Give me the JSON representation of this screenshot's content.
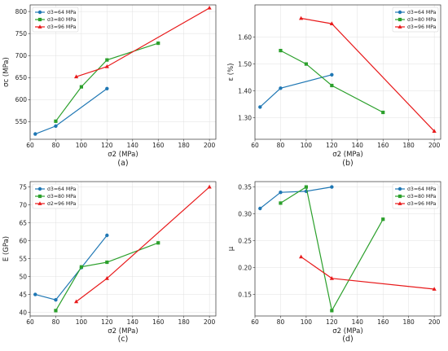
{
  "chart_data": [
    {
      "type": "line",
      "caption": "(a)",
      "xlabel": "σ2 (MPa)",
      "ylabel": "σc (MPa)",
      "xlim": [
        60,
        205
      ],
      "ylim": [
        510,
        815
      ],
      "xticks": [
        60,
        80,
        100,
        120,
        140,
        160,
        180,
        200
      ],
      "yticks": [
        550,
        600,
        650,
        700,
        750,
        800
      ],
      "legend": "top-left",
      "series": [
        {
          "name": "σ3=64 MPa",
          "color": "#1f77b4",
          "marker": "circle",
          "x": [
            64,
            80,
            120
          ],
          "y": [
            522,
            540,
            625
          ]
        },
        {
          "name": "σ3=80 MPa",
          "color": "#2ca02c",
          "marker": "square",
          "x": [
            80,
            100,
            120,
            160
          ],
          "y": [
            551,
            629,
            690,
            728
          ]
        },
        {
          "name": "σ3=96 MPa",
          "color": "#e8191a",
          "marker": "triangle",
          "x": [
            96,
            120,
            200
          ],
          "y": [
            652,
            675,
            808
          ]
        }
      ]
    },
    {
      "type": "line",
      "caption": "(b)",
      "xlabel": "σ2 (MPa)",
      "ylabel": "ε (%)",
      "xlim": [
        60,
        205
      ],
      "ylim": [
        1.22,
        1.72
      ],
      "xticks": [
        60,
        80,
        100,
        120,
        140,
        160,
        180,
        200
      ],
      "yticks": [
        1.3,
        1.4,
        1.5,
        1.6
      ],
      "legend": "top-right",
      "series": [
        {
          "name": "σ3=64 MPa",
          "color": "#1f77b4",
          "marker": "circle",
          "x": [
            64,
            80,
            120
          ],
          "y": [
            1.34,
            1.41,
            1.46
          ]
        },
        {
          "name": "σ3=80 MPa",
          "color": "#2ca02c",
          "marker": "square",
          "x": [
            80,
            100,
            120,
            160
          ],
          "y": [
            1.55,
            1.5,
            1.42,
            1.32
          ]
        },
        {
          "name": "σ3=96 MPa",
          "color": "#e8191a",
          "marker": "triangle",
          "x": [
            96,
            120,
            200
          ],
          "y": [
            1.67,
            1.65,
            1.25
          ]
        }
      ]
    },
    {
      "type": "line",
      "caption": "(c)",
      "xlabel": "σ2 (MPa)",
      "ylabel": "E (GPa)",
      "xlim": [
        60,
        205
      ],
      "ylim": [
        39,
        76.5
      ],
      "xticks": [
        60,
        80,
        100,
        120,
        140,
        160,
        180,
        200
      ],
      "yticks": [
        40,
        45,
        50,
        55,
        60,
        65,
        70,
        75
      ],
      "legend": "top-left",
      "series": [
        {
          "name": "σ3=64 MPa",
          "color": "#1f77b4",
          "marker": "circle",
          "x": [
            64,
            80,
            100,
            120
          ],
          "y": [
            45,
            43.5,
            52.5,
            61.5
          ]
        },
        {
          "name": "σ3=80 MPa",
          "color": "#2ca02c",
          "marker": "square",
          "x": [
            80,
            100,
            120,
            160
          ],
          "y": [
            40.5,
            52.7,
            54,
            59.4
          ]
        },
        {
          "name": "σ2=96 MPa",
          "color": "#e8191a",
          "marker": "triangle",
          "x": [
            96,
            120,
            200
          ],
          "y": [
            43,
            49.5,
            75
          ]
        }
      ]
    },
    {
      "type": "line",
      "caption": "(d)",
      "xlabel": "σ2 (MPa)",
      "ylabel": "μ",
      "xlim": [
        60,
        205
      ],
      "ylim": [
        0.11,
        0.36
      ],
      "xticks": [
        60,
        80,
        100,
        120,
        140,
        160,
        180,
        200
      ],
      "yticks": [
        0.15,
        0.2,
        0.25,
        0.3,
        0.35
      ],
      "legend": "top-right",
      "series": [
        {
          "name": "σ3=64 MPa",
          "color": "#1f77b4",
          "marker": "circle",
          "x": [
            64,
            80,
            100,
            120
          ],
          "y": [
            0.31,
            0.34,
            0.342,
            0.35
          ]
        },
        {
          "name": "σ3=80 MPa",
          "color": "#2ca02c",
          "marker": "square",
          "x": [
            80,
            100,
            120,
            160
          ],
          "y": [
            0.32,
            0.35,
            0.12,
            0.29
          ]
        },
        {
          "name": "σ3=96 MPa",
          "color": "#e8191a",
          "marker": "triangle",
          "x": [
            96,
            120,
            200
          ],
          "y": [
            0.22,
            0.18,
            0.16
          ]
        }
      ]
    }
  ]
}
